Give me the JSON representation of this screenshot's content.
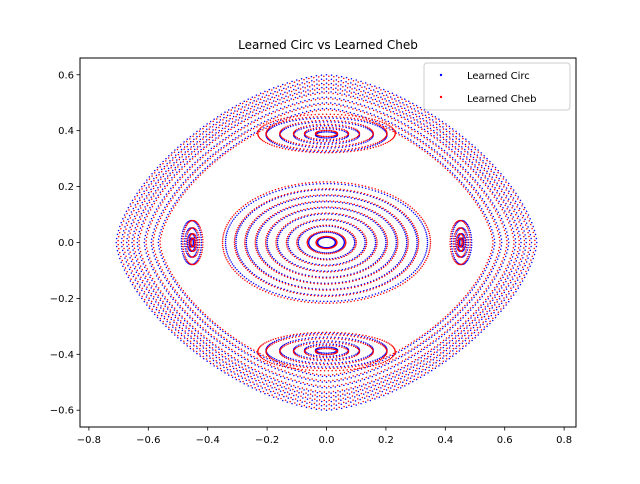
{
  "chart_data": {
    "type": "scatter",
    "title": "Learned Circ vs Learned Cheb",
    "xlabel": "",
    "ylabel": "",
    "xlim": [
      -0.83,
      0.84
    ],
    "ylim": [
      -0.66,
      0.66
    ],
    "x_ticks": [
      -0.8,
      -0.6,
      -0.4,
      -0.2,
      0.0,
      0.2,
      0.4,
      0.6,
      0.8
    ],
    "y_ticks": [
      -0.6,
      -0.4,
      -0.2,
      0.0,
      0.2,
      0.4,
      0.6
    ],
    "grid": false,
    "legend_position": "top-right",
    "series": [
      {
        "name": "Learned Circ",
        "color": "#0000ff",
        "marker": "dot",
        "families": {
          "outer_orbits": [
            0.6,
            0.585,
            0.57,
            0.555,
            0.54,
            0.52,
            0.5,
            0.48
          ],
          "central_rings": [
            0.34,
            0.305,
            0.27,
            0.235,
            0.2,
            0.165,
            0.13,
            0.095,
            0.06,
            0.03
          ],
          "vertical_islands_center": [
            0.0,
            0.385
          ],
          "vertical_islands_radii": [
            0.02,
            0.04,
            0.06,
            0.085,
            0.11
          ],
          "horizontal_islands_center": [
            0.455,
            0.0
          ],
          "horizontal_islands_radii": [
            0.015,
            0.03,
            0.05,
            0.075
          ]
        }
      },
      {
        "name": "Learned Cheb",
        "color": "#ff0000",
        "marker": "dot",
        "families": {
          "outer_orbits": [
            0.595,
            0.58,
            0.565,
            0.55,
            0.535,
            0.515,
            0.495,
            0.475
          ],
          "central_rings": [
            0.35,
            0.31,
            0.275,
            0.24,
            0.205,
            0.17,
            0.135,
            0.1,
            0.065,
            0.035
          ],
          "vertical_islands_center": [
            0.0,
            0.39
          ],
          "vertical_islands_radii": [
            0.02,
            0.04,
            0.06,
            0.085,
            0.11,
            0.125
          ],
          "horizontal_islands_center": [
            0.45,
            0.0
          ],
          "horizontal_islands_radii": [
            0.015,
            0.03,
            0.05,
            0.075
          ]
        }
      }
    ]
  }
}
